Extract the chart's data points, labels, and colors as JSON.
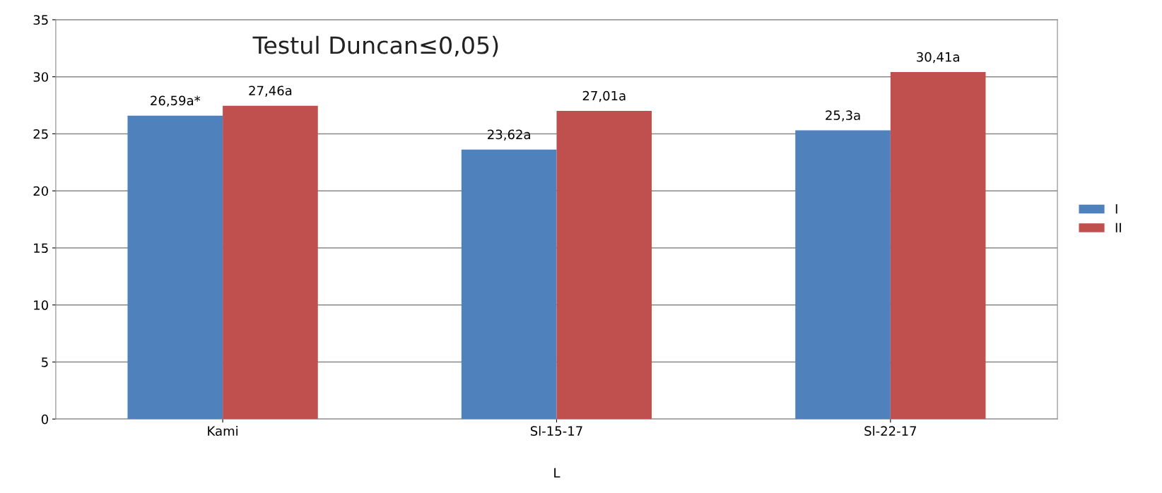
{
  "chart_data": {
    "type": "bar",
    "title": "Testul Duncan≤0,05)",
    "xlabel": "L",
    "categories": [
      "Kami",
      "Sl-15-17",
      "Sl-22-17"
    ],
    "series": [
      {
        "name": "I",
        "color": "#4f81bd",
        "values": [
          26.59,
          23.62,
          25.3
        ],
        "value_labels": [
          "26,59a*",
          "23,62a",
          "25,3a"
        ]
      },
      {
        "name": "II",
        "color": "#c0504d",
        "values": [
          27.46,
          27.01,
          30.41
        ],
        "value_labels": [
          "27,46a",
          "27,01a",
          "30,41a"
        ]
      }
    ],
    "ylim": [
      0,
      35
    ],
    "yticks": [
      0,
      5,
      10,
      15,
      20,
      25,
      30,
      35
    ],
    "grid": "y",
    "legend": "right"
  }
}
